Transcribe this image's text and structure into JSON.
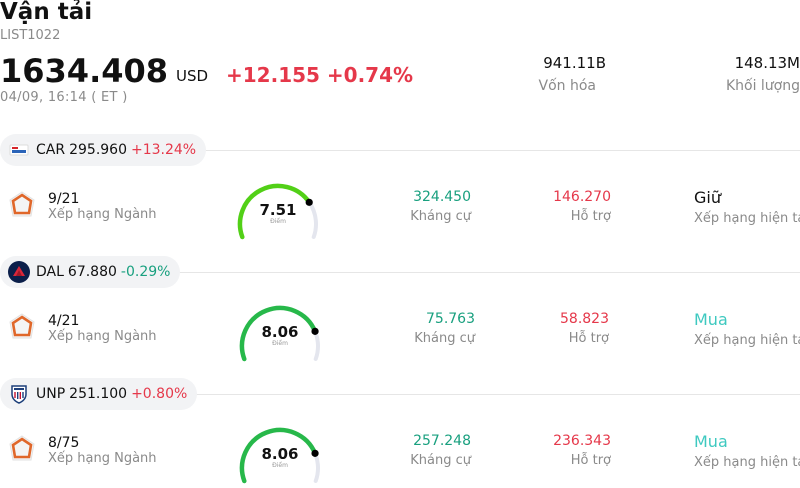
{
  "header": {
    "title": "Vận tải",
    "code": "LIST1022",
    "price": "1634.408",
    "currency": "USD",
    "change": "+12.155 +0.74%",
    "time": "04/09, 16:14  ( ET )"
  },
  "stats": [
    {
      "value": "941.11B",
      "label": "Vốn hóa"
    },
    {
      "value": "148.13M",
      "label": "Khối lượng"
    }
  ],
  "labels": {
    "rank": "Xếp hạng Ngành",
    "resistance": "Kháng cự",
    "support": "Hỗ trợ",
    "rating": "Xếp hạng hiện tại",
    "score": "Điểm"
  },
  "stocks": [
    {
      "symbol": "CAR",
      "price": "295.960",
      "change": "+13.24%",
      "direction": "up",
      "logo_icon": "avis-budget-logo-icon",
      "rank": "9/21",
      "score": "7.51",
      "score_value": 7.51,
      "resistance": "324.450",
      "support": "146.270",
      "rating": "Giữ",
      "rating_color": "#111111",
      "gauge_color": "#52d017"
    },
    {
      "symbol": "DAL",
      "price": "67.880",
      "change": "-0.29%",
      "direction": "down",
      "logo_icon": "delta-logo-icon",
      "rank": "4/21",
      "score": "8.06",
      "score_value": 8.06,
      "resistance": "75.763",
      "support": "58.823",
      "rating": "Mua",
      "rating_color": "#3ec9c0",
      "gauge_color": "#27b84a"
    },
    {
      "symbol": "UNP",
      "price": "251.100",
      "change": "+0.80%",
      "direction": "up",
      "logo_icon": "union-pacific-logo-icon",
      "rank": "8/75",
      "score": "8.06",
      "score_value": 8.06,
      "resistance": "257.248",
      "support": "236.343",
      "rating": "Mua",
      "rating_color": "#3ec9c0",
      "gauge_color": "#27b84a"
    }
  ]
}
